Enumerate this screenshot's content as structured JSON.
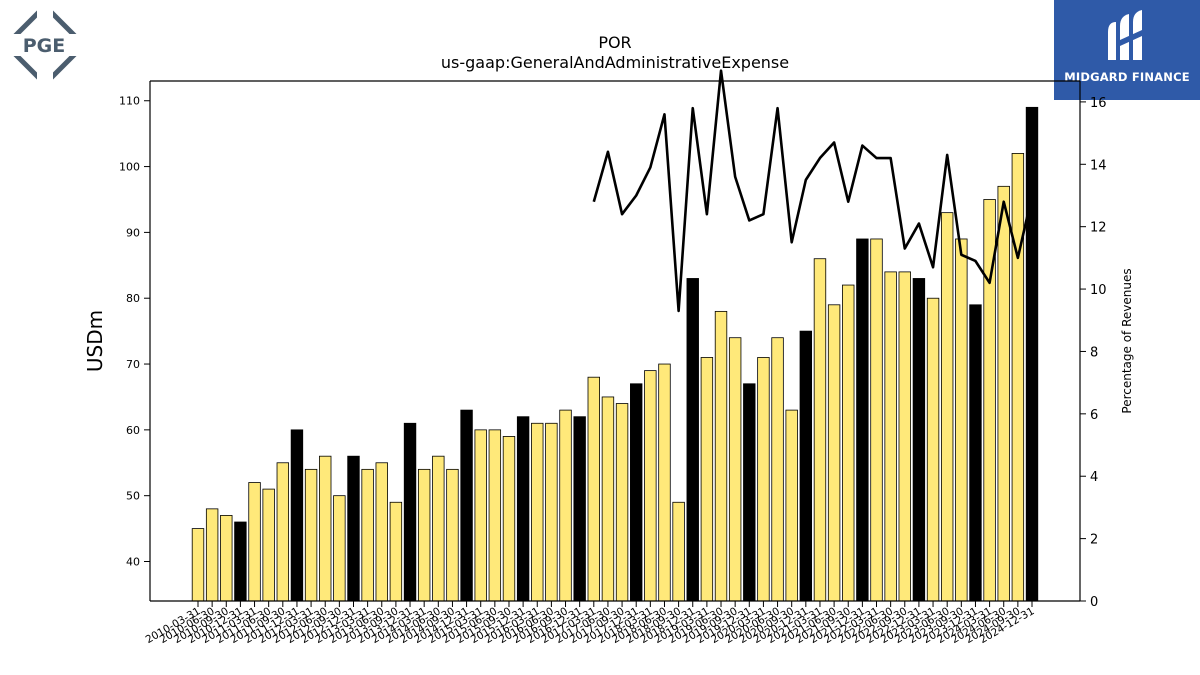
{
  "logos": {
    "left_text": "PGE",
    "right_text": "MIDGARD FINANCE"
  },
  "chart_data": {
    "type": "bar",
    "title": "POR",
    "subtitle": "us-gaap:GeneralAndAdministrativeExpense",
    "ylabel": "USDm",
    "y2label": "Percentage of Revenues",
    "ylim": [
      34,
      113
    ],
    "y2lim": [
      0,
      16.67
    ],
    "yticks": [
      40,
      50,
      60,
      70,
      80,
      90,
      100,
      110
    ],
    "y2ticks": [
      0,
      2,
      4,
      6,
      8,
      10,
      12,
      14,
      16
    ],
    "colors": {
      "bar_quarter": "#ffe97a",
      "bar_annual": "#000000",
      "line": "#000000"
    },
    "categories": [
      "2010-03-31",
      "2010-06-30",
      "2010-09-30",
      "2010-12-31",
      "2011-03-31",
      "2011-06-30",
      "2011-09-30",
      "2011-12-31",
      "2012-03-31",
      "2012-06-30",
      "2012-09-30",
      "2012-12-31",
      "2013-03-31",
      "2013-06-30",
      "2013-09-30",
      "2013-12-31",
      "2014-03-31",
      "2014-06-30",
      "2014-09-30",
      "2014-12-31",
      "2015-03-31",
      "2015-06-30",
      "2015-09-30",
      "2015-12-31",
      "2016-03-31",
      "2016-06-30",
      "2016-09-30",
      "2016-12-31",
      "2017-03-31",
      "2017-06-30",
      "2017-09-30",
      "2017-12-31",
      "2018-03-31",
      "2018-06-30",
      "2018-09-30",
      "2018-12-31",
      "2019-03-31",
      "2019-06-30",
      "2019-09-30",
      "2019-12-31",
      "2020-03-31",
      "2020-06-30",
      "2020-09-30",
      "2020-12-31",
      "2021-03-31",
      "2021-06-30",
      "2021-09-30",
      "2021-12-31",
      "2022-03-31",
      "2022-06-30",
      "2022-09-30",
      "2022-12-31",
      "2023-03-31",
      "2023-06-30",
      "2023-09-30",
      "2023-12-31",
      "2024-03-31",
      "2024-06-30",
      "2024-09-30",
      "2024-12-31"
    ],
    "x_ticklabels_note": "",
    "series": [
      {
        "type": "bar",
        "values": [
          45,
          48,
          47,
          46,
          52,
          51,
          55,
          60,
          54,
          56,
          50,
          56,
          54,
          55,
          49,
          61,
          54,
          56,
          54,
          63,
          60,
          60,
          59,
          62,
          61,
          61,
          63,
          62,
          68,
          65,
          64,
          67,
          69,
          70,
          49,
          83,
          71,
          78,
          74,
          67,
          71,
          74,
          63,
          75,
          86,
          79,
          82,
          89,
          89,
          84,
          84,
          83,
          80,
          93,
          89,
          79,
          95,
          97,
          102,
          109
        ],
        "annual": [
          false,
          false,
          false,
          true,
          false,
          false,
          false,
          true,
          false,
          false,
          false,
          true,
          false,
          false,
          false,
          true,
          false,
          false,
          false,
          true,
          false,
          false,
          false,
          true,
          false,
          false,
          false,
          true,
          false,
          false,
          false,
          true,
          false,
          false,
          false,
          true,
          false,
          false,
          false,
          true,
          false,
          false,
          false,
          true,
          false,
          false,
          false,
          true,
          false,
          false,
          false,
          true,
          false,
          false,
          false,
          true,
          false,
          false,
          false,
          true
        ]
      },
      {
        "type": "line",
        "axis": "right",
        "values": [
          null,
          null,
          null,
          null,
          null,
          null,
          null,
          null,
          null,
          null,
          null,
          null,
          null,
          null,
          null,
          null,
          null,
          null,
          null,
          null,
          null,
          null,
          null,
          null,
          null,
          null,
          null,
          null,
          12.8,
          14.4,
          12.4,
          13.0,
          13.9,
          15.6,
          9.3,
          15.8,
          12.4,
          17.0,
          13.6,
          12.2,
          12.4,
          15.8,
          11.5,
          13.5,
          14.2,
          14.7,
          12.8,
          14.6,
          14.2,
          14.2,
          11.3,
          12.1,
          10.7,
          14.3,
          11.1,
          10.9,
          10.2,
          12.8,
          11.0,
          13.0
        ]
      }
    ]
  }
}
